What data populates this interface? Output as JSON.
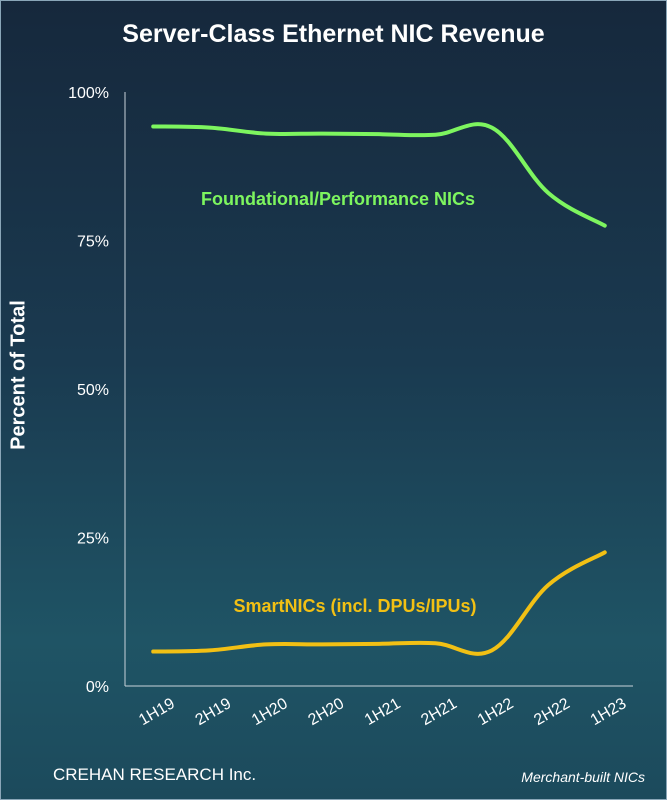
{
  "chart_data": {
    "type": "line",
    "title": "Server-Class Ethernet NIC Revenue",
    "ylabel": "Percent of Total",
    "xlabel": "",
    "categories": [
      "1H19",
      "2H19",
      "1H20",
      "2H20",
      "1H21",
      "2H21",
      "1H22",
      "2H22",
      "1H23"
    ],
    "ylim": [
      0,
      100
    ],
    "yticks": [
      "0%",
      "25%",
      "50%",
      "75%",
      "100%"
    ],
    "ytick_values": [
      0,
      25,
      50,
      75,
      100
    ],
    "grid": false,
    "series": [
      {
        "name": "Foundational/Performance NICs",
        "color": "#7df55f",
        "values": [
          94.2,
          94.0,
          93.0,
          93.0,
          92.9,
          92.8,
          94.0,
          83.0,
          77.5
        ]
      },
      {
        "name": "SmartNICs (incl. DPUs/IPUs)",
        "color": "#f2c014",
        "values": [
          5.8,
          6.0,
          7.0,
          7.0,
          7.1,
          7.2,
          6.0,
          17.0,
          22.5
        ]
      }
    ],
    "annotations": [
      "CREHAN RESEARCH Inc.",
      "Merchant-built NICs"
    ]
  }
}
